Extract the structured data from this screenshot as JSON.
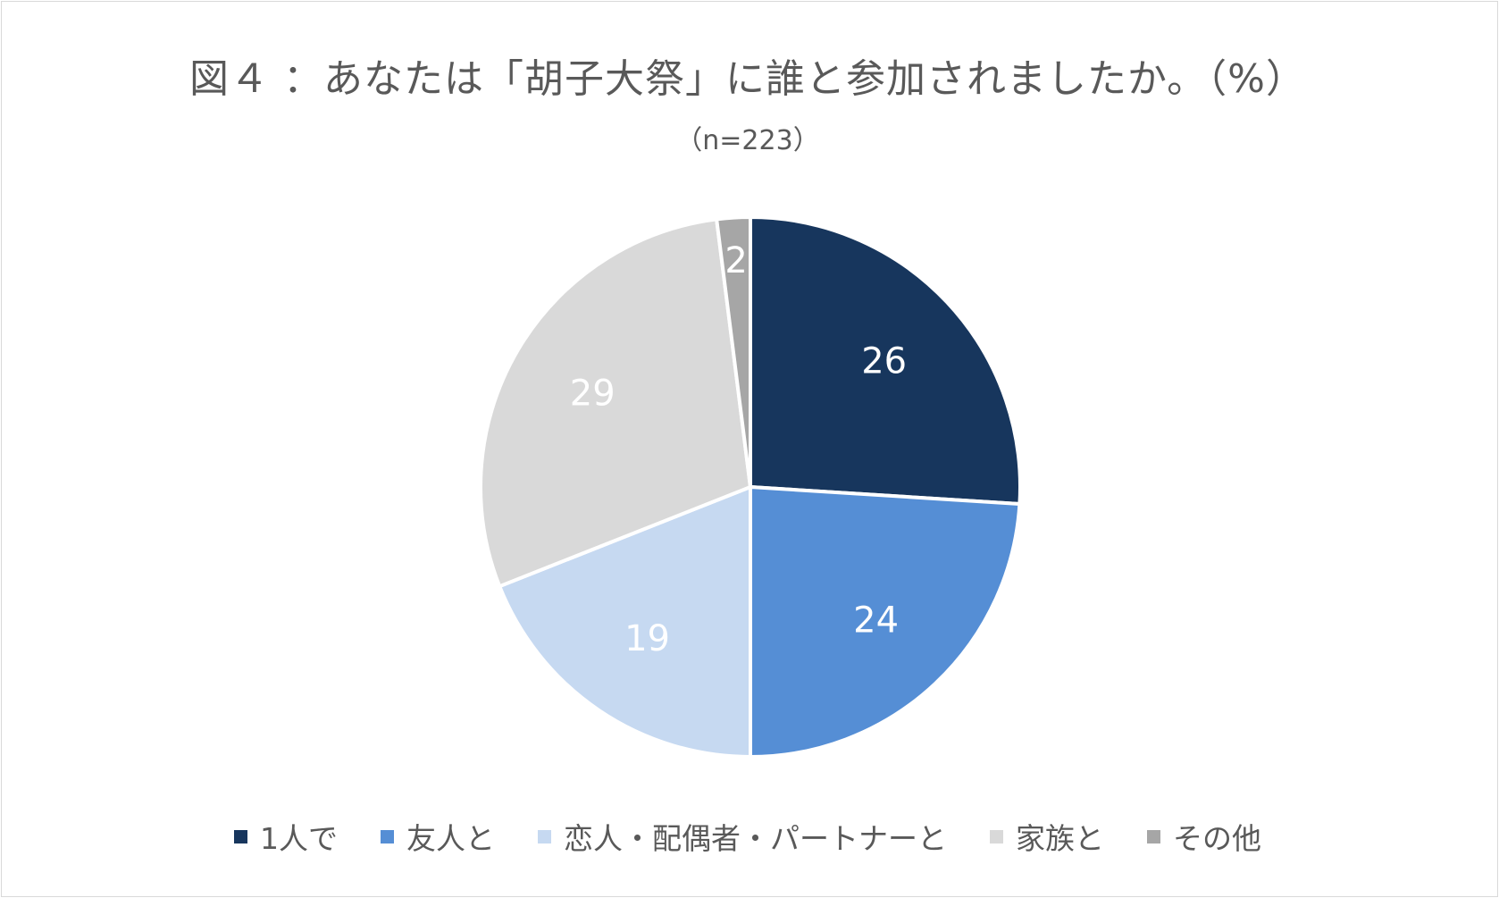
{
  "chart_data": {
    "type": "pie",
    "title": "図４ ：あなたは「胡子大祭」に誰と参加されましたか。（%）",
    "subtitle": "（n=223）",
    "categories": [
      "1人で",
      "友人と",
      "恋人・配偶者・パートナーと",
      "家族と",
      "その他"
    ],
    "values": [
      26,
      24,
      19,
      29,
      2
    ],
    "colors": [
      "#17365d",
      "#558ed5",
      "#c6d9f1",
      "#d9d9d9",
      "#a6a6a6"
    ],
    "label_colors": [
      "#ffffff",
      "#ffffff",
      "#ffffff",
      "#ffffff",
      "#ffffff"
    ],
    "legend_position": "bottom",
    "start_angle": "12 o'clock",
    "direction": "clockwise"
  }
}
